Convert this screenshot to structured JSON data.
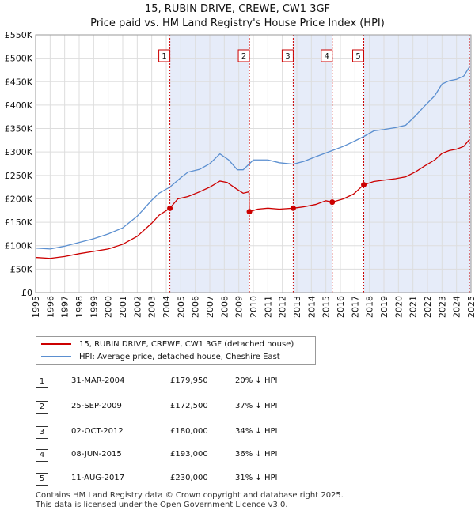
{
  "title_line1": "15, RUBIN DRIVE, CREWE, CW1 3GF",
  "title_line2": "Price paid vs. HM Land Registry's House Price Index (HPI)",
  "chart_data": {
    "type": "line",
    "x_min": 1995,
    "x_max": 2025,
    "ylim": [
      0,
      550000
    ],
    "y_ticks": [
      0,
      50000,
      100000,
      150000,
      200000,
      250000,
      300000,
      350000,
      400000,
      450000,
      500000,
      550000
    ],
    "y_tick_labels": [
      "£0",
      "£50K",
      "£100K",
      "£150K",
      "£200K",
      "£250K",
      "£300K",
      "£350K",
      "£400K",
      "£450K",
      "£500K",
      "£550K"
    ],
    "x_ticks": [
      1995,
      1996,
      1997,
      1998,
      1999,
      2000,
      2001,
      2002,
      2003,
      2004,
      2005,
      2006,
      2007,
      2008,
      2009,
      2010,
      2011,
      2012,
      2013,
      2014,
      2015,
      2016,
      2017,
      2018,
      2019,
      2020,
      2021,
      2022,
      2023,
      2024,
      2025
    ],
    "series": [
      {
        "name": "15, RUBIN DRIVE, CREWE, CW1 3GF (detached house)",
        "color": "#cc0000",
        "points": [
          [
            1995.0,
            75000
          ],
          [
            1996.0,
            73000
          ],
          [
            1997.0,
            77000
          ],
          [
            1998.0,
            83000
          ],
          [
            1999.0,
            88000
          ],
          [
            2000.0,
            93000
          ],
          [
            2001.0,
            103000
          ],
          [
            2002.0,
            120000
          ],
          [
            2003.0,
            148000
          ],
          [
            2003.5,
            165000
          ],
          [
            2004.25,
            179950
          ],
          [
            2004.8,
            200000
          ],
          [
            2005.5,
            205000
          ],
          [
            2006.3,
            215000
          ],
          [
            2007.0,
            225000
          ],
          [
            2007.7,
            238000
          ],
          [
            2008.2,
            235000
          ],
          [
            2008.8,
            222000
          ],
          [
            2009.3,
            212000
          ],
          [
            2009.7,
            215000
          ],
          [
            2009.73,
            172500
          ],
          [
            2010.3,
            178000
          ],
          [
            2011.0,
            180000
          ],
          [
            2011.8,
            178000
          ],
          [
            2012.75,
            180000
          ],
          [
            2013.5,
            183000
          ],
          [
            2014.3,
            188000
          ],
          [
            2015.0,
            196000
          ],
          [
            2015.44,
            193000
          ],
          [
            2016.2,
            200000
          ],
          [
            2016.9,
            210000
          ],
          [
            2017.61,
            230000
          ],
          [
            2018.3,
            237000
          ],
          [
            2019.0,
            240000
          ],
          [
            2019.8,
            243000
          ],
          [
            2020.5,
            247000
          ],
          [
            2021.2,
            258000
          ],
          [
            2021.8,
            270000
          ],
          [
            2022.5,
            283000
          ],
          [
            2023.0,
            297000
          ],
          [
            2023.5,
            303000
          ],
          [
            2024.0,
            306000
          ],
          [
            2024.5,
            312000
          ],
          [
            2024.9,
            327000
          ]
        ]
      },
      {
        "name": "HPI: Average price, detached house, Cheshire East",
        "color": "#5b8fd0",
        "points": [
          [
            1995.0,
            95000
          ],
          [
            1996.0,
            93000
          ],
          [
            1997.0,
            99000
          ],
          [
            1998.0,
            107000
          ],
          [
            1999.0,
            115000
          ],
          [
            2000.0,
            125000
          ],
          [
            2001.0,
            138000
          ],
          [
            2002.0,
            163000
          ],
          [
            2003.0,
            197000
          ],
          [
            2003.5,
            212000
          ],
          [
            2004.25,
            225000
          ],
          [
            2005.0,
            245000
          ],
          [
            2005.5,
            257000
          ],
          [
            2006.3,
            263000
          ],
          [
            2007.0,
            275000
          ],
          [
            2007.7,
            296000
          ],
          [
            2008.3,
            283000
          ],
          [
            2008.9,
            262000
          ],
          [
            2009.3,
            262000
          ],
          [
            2010.0,
            283000
          ],
          [
            2011.0,
            283000
          ],
          [
            2011.8,
            277000
          ],
          [
            2012.75,
            274000
          ],
          [
            2013.5,
            280000
          ],
          [
            2014.3,
            290000
          ],
          [
            2015.0,
            298000
          ],
          [
            2015.44,
            303000
          ],
          [
            2016.2,
            312000
          ],
          [
            2016.9,
            322000
          ],
          [
            2017.61,
            333000
          ],
          [
            2018.3,
            345000
          ],
          [
            2019.0,
            348000
          ],
          [
            2019.8,
            352000
          ],
          [
            2020.5,
            357000
          ],
          [
            2021.2,
            378000
          ],
          [
            2021.8,
            398000
          ],
          [
            2022.5,
            420000
          ],
          [
            2023.0,
            445000
          ],
          [
            2023.5,
            452000
          ],
          [
            2024.0,
            455000
          ],
          [
            2024.5,
            462000
          ],
          [
            2024.9,
            482000
          ]
        ]
      }
    ],
    "sales": [
      {
        "label": "1",
        "x": 2004.25,
        "price": 179950
      },
      {
        "label": "2",
        "x": 2009.73,
        "price": 172500
      },
      {
        "label": "3",
        "x": 2012.75,
        "price": 180000
      },
      {
        "label": "4",
        "x": 2015.44,
        "price": 193000
      },
      {
        "label": "5",
        "x": 2017.61,
        "price": 230000
      }
    ],
    "shaded_ranges": [
      [
        2004.25,
        2009.73
      ],
      [
        2012.75,
        2015.44
      ],
      [
        2017.61,
        2025.0
      ]
    ]
  },
  "legend": {
    "property_label": "15, RUBIN DRIVE, CREWE, CW1 3GF (detached house)",
    "hpi_label": "HPI: Average price, detached house, Cheshire East"
  },
  "transactions": [
    {
      "num": "1",
      "date": "31-MAR-2004",
      "price": "£179,950",
      "hpi": "20% ↓ HPI"
    },
    {
      "num": "2",
      "date": "25-SEP-2009",
      "price": "£172,500",
      "hpi": "37% ↓ HPI"
    },
    {
      "num": "3",
      "date": "02-OCT-2012",
      "price": "£180,000",
      "hpi": "34% ↓ HPI"
    },
    {
      "num": "4",
      "date": "08-JUN-2015",
      "price": "£193,000",
      "hpi": "36% ↓ HPI"
    },
    {
      "num": "5",
      "date": "11-AUG-2017",
      "price": "£230,000",
      "hpi": "31% ↓ HPI"
    }
  ],
  "footer": {
    "line1": "Contains HM Land Registry data © Crown copyright and database right 2025.",
    "line2": "This data is licensed under the Open Government Licence v3.0."
  }
}
